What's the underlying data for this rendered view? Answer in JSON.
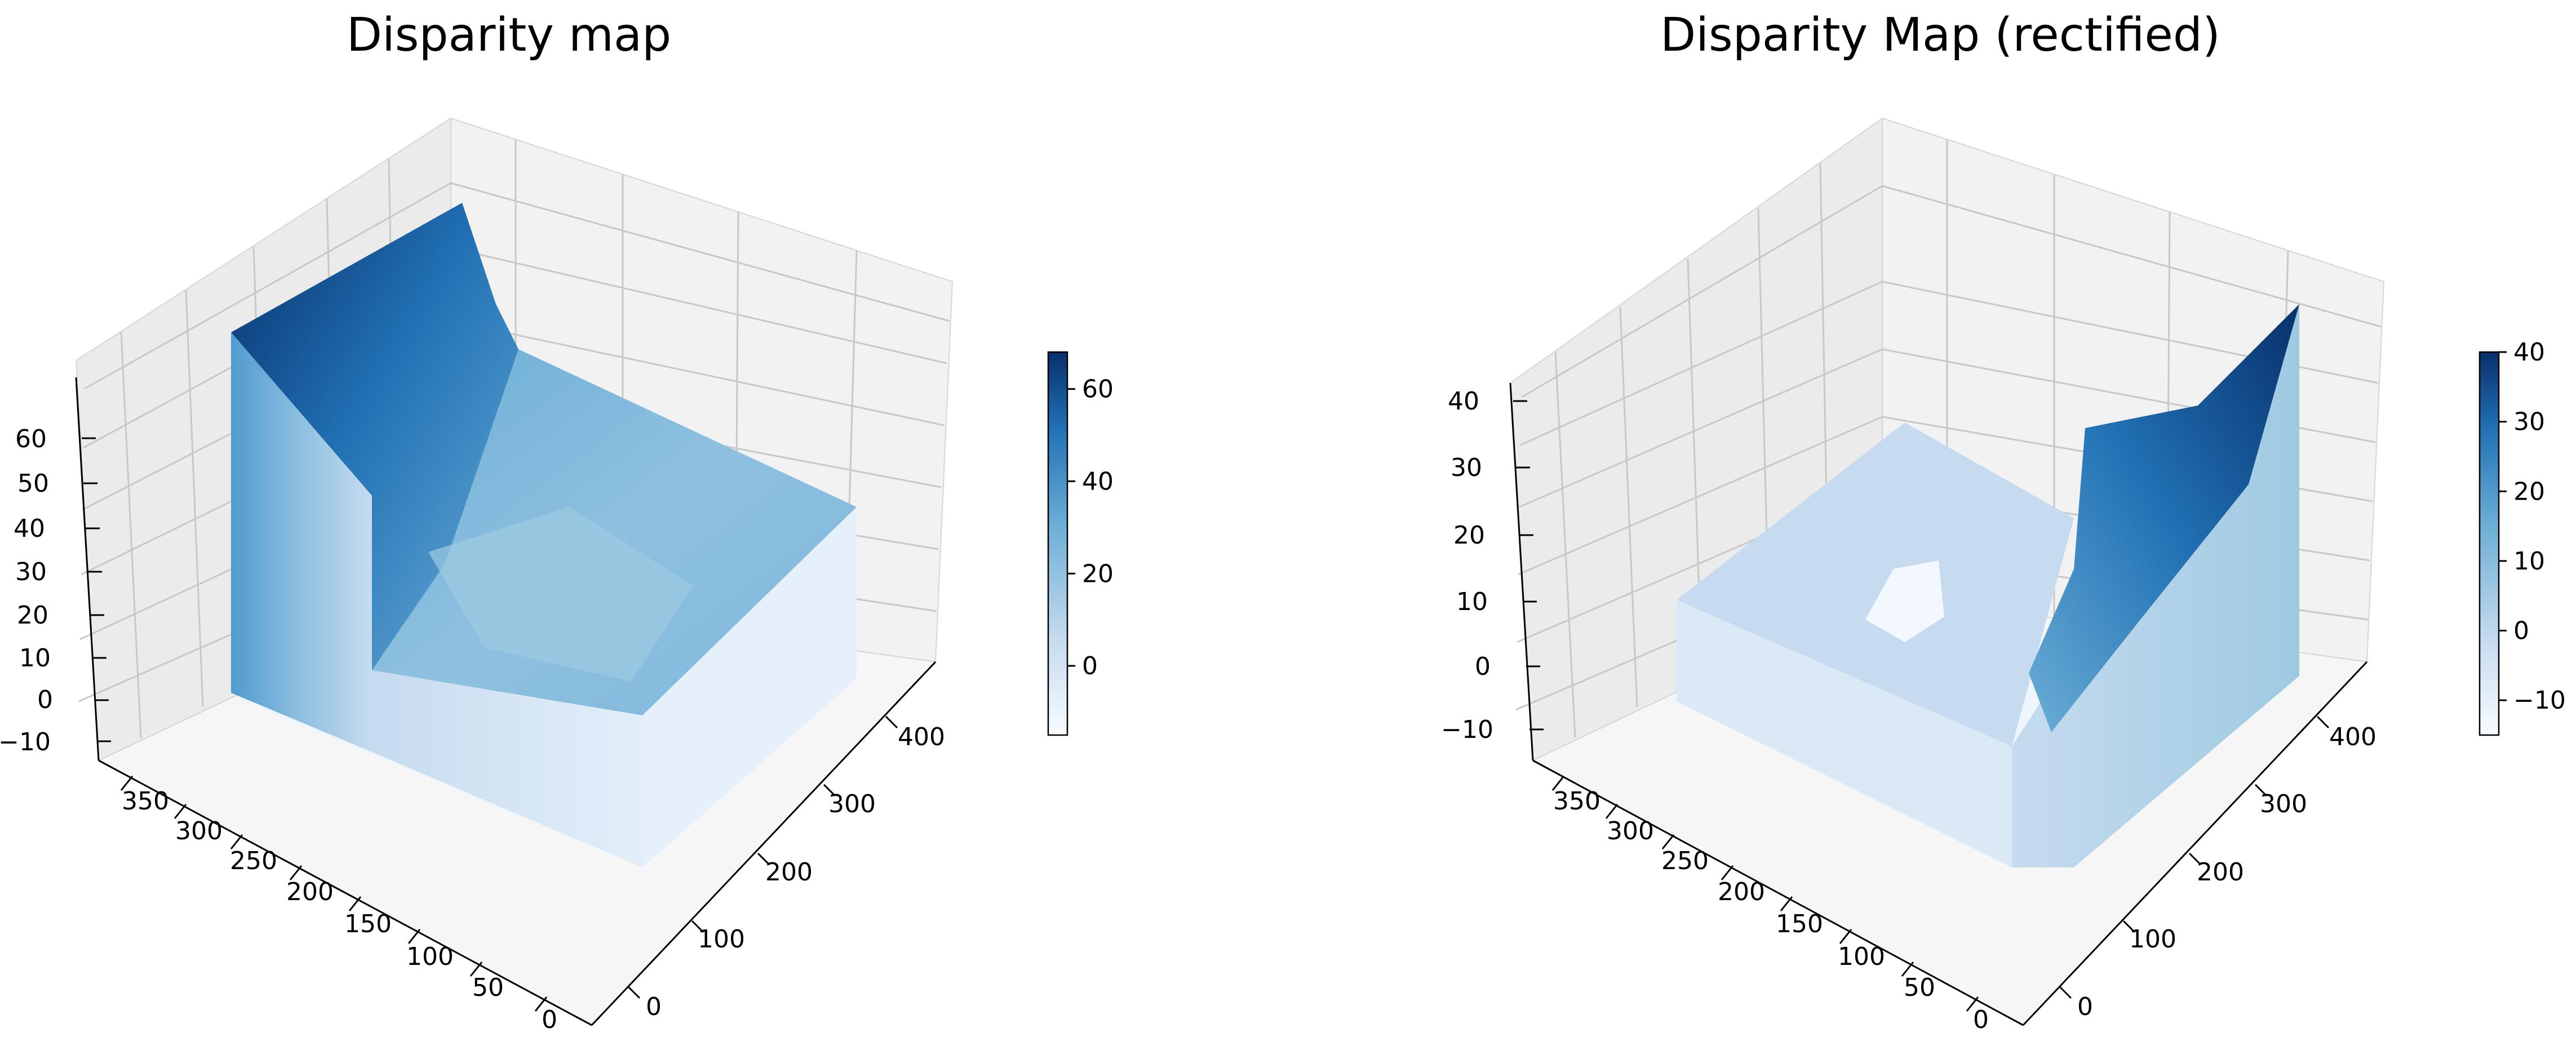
{
  "chart_data": [
    {
      "type": "surface3d",
      "title": "Disparity map",
      "x_ticks": [
        "0",
        "100",
        "200",
        "300",
        "400"
      ],
      "y_ticks": [
        "0",
        "50",
        "100",
        "150",
        "200",
        "250",
        "300",
        "350"
      ],
      "z_ticks": [
        "−10",
        "0",
        "10",
        "20",
        "30",
        "40",
        "50",
        "60"
      ],
      "colorbar": {
        "ticks": [
          "0",
          "20",
          "40",
          "60"
        ],
        "range": [
          -15,
          68
        ],
        "colormap": "Blues"
      },
      "surface": {
        "base_value": -15,
        "plateau_value": 22,
        "peak_value": 68,
        "plateau_region": "right-center",
        "peak_region": "back-left ridge"
      }
    },
    {
      "type": "surface3d",
      "title": "Disparity Map (rectified)",
      "x_ticks": [
        "0",
        "100",
        "200",
        "300",
        "400"
      ],
      "y_ticks": [
        "0",
        "50",
        "100",
        "150",
        "200",
        "250",
        "300",
        "350"
      ],
      "z_ticks": [
        "−10",
        "0",
        "10",
        "20",
        "30",
        "40"
      ],
      "colorbar": {
        "ticks": [
          "−10",
          "0",
          "10",
          "20",
          "30",
          "40"
        ],
        "range": [
          -15,
          40
        ],
        "colormap": "Blues"
      },
      "surface": {
        "base_value": -15,
        "plateau_value": 2,
        "peak_value": 40,
        "plateau_region": "center",
        "peak_region": "right ridge"
      }
    }
  ],
  "colors": {
    "dark": "#08306b",
    "mid": "#4292c6",
    "light": "#c6dbef",
    "pale": "#f7fbff"
  }
}
